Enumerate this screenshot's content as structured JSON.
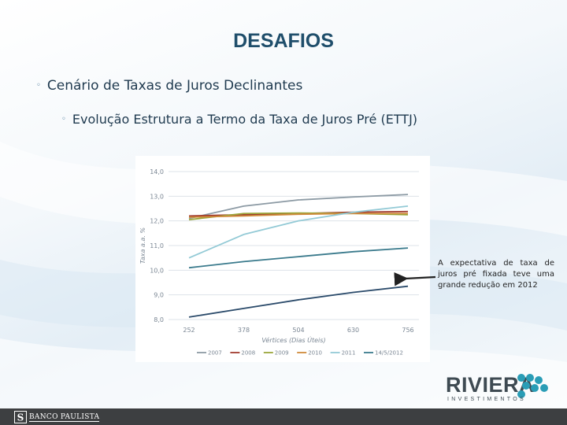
{
  "slide": {
    "title": "DESAFIOS",
    "bullet_level1": "Cenário de Taxas de Juros Declinantes",
    "bullet_level2": "Evolução Estrutura a Termo da Taxa de Juros Pré (ETTJ)",
    "annotation": "A expectativa de taxa de juros pré fixada teve uma grande redução em 2012"
  },
  "logo": {
    "name": "RIVIERA",
    "subtitle": "INVESTIMENTOS"
  },
  "footer": {
    "brand": "BANCO PAULISTA"
  },
  "chart_data": {
    "type": "line",
    "title": "",
    "xlabel": "Vértices (Dias Úteis)",
    "ylabel": "Taxa a.a. %",
    "x": [
      252,
      378,
      504,
      630,
      756
    ],
    "x_tick_labels": [
      "252",
      "378",
      "504",
      "630",
      "756"
    ],
    "y_ticks": [
      8.0,
      9.0,
      10.0,
      11.0,
      12.0,
      13.0,
      14.0
    ],
    "y_tick_labels": [
      "8,0",
      "9,0",
      "10,0",
      "11,0",
      "12,0",
      "13,0",
      "14,0"
    ],
    "ylim": [
      8.0,
      14.0
    ],
    "grid": true,
    "legend_position": "bottom",
    "series": [
      {
        "name": "2007",
        "color": "#8c9aa4",
        "values": [
          12.1,
          12.6,
          12.85,
          12.97,
          13.07
        ]
      },
      {
        "name": "2008",
        "color": "#a03a2e",
        "values": [
          12.2,
          12.25,
          12.3,
          12.35,
          12.38
        ]
      },
      {
        "name": "2009",
        "color": "#9aa63a",
        "values": [
          12.05,
          12.3,
          12.32,
          12.3,
          12.25
        ]
      },
      {
        "name": "2010",
        "color": "#d08a3a",
        "values": [
          12.15,
          12.2,
          12.27,
          12.3,
          12.3
        ]
      },
      {
        "name": "2011",
        "color": "#93cad6",
        "values": [
          10.5,
          11.45,
          12.0,
          12.35,
          12.6
        ]
      },
      {
        "name": "14/5/2012",
        "color": "#3a7a8c",
        "values": [
          10.1,
          10.35,
          10.55,
          10.75,
          10.9
        ]
      },
      {
        "name": "",
        "color": "#2a4a6a",
        "values": [
          8.1,
          8.45,
          8.8,
          9.1,
          9.35
        ]
      }
    ]
  }
}
